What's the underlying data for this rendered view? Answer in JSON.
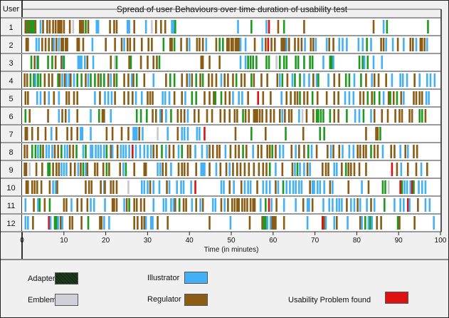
{
  "chart_data": {
    "type": "timeline",
    "title": "Spread of user Behaviours over time duration of usability test",
    "xlabel": "Time (in minutes)",
    "ylabel": "User",
    "xlim": [
      0,
      100
    ],
    "xticks": [
      0,
      10,
      20,
      30,
      40,
      50,
      60,
      70,
      80,
      90,
      100
    ],
    "users": [
      "1",
      "2",
      "3",
      "4",
      "5",
      "6",
      "7",
      "8",
      "9",
      "10",
      "11",
      "12"
    ],
    "categories": {
      "A": {
        "name": "Adapter",
        "color": "#1e9a1e"
      },
      "E": {
        "name": "Emblem",
        "color": "#c8c8d0"
      },
      "I": {
        "name": "Illustrator",
        "color": "#44b0f5"
      },
      "R": {
        "name": "Regulator",
        "color": "#8a5c14"
      },
      "U": {
        "name": "Usability Problem found",
        "color": "#dd1111"
      }
    },
    "events": [
      "R0.8A1.2R1.6A2A2.4A2.8R3.2I4.4R5R6R6.6R7.4R8R8.6R9R9.4R10R11.4E12.2R13.8R14.2R14.6A15.2R15.8I17.8I18.2R21R22R22.6I25.2I25.6R26.8I29.6E31R32R33.2R34.2I35.8I36.2A36.6I51.6A54.8I58.4U59R61.2A62.6R67.4R84I86.4A87.2A97",
      "R1R1.4I3.4I4R4.8R5.6R6.4R7.2I7.6R8.2I8.8R9.4R9.8R10.4R10.8R13.2R13.6R14.6I16.8R20R22.2R23.8I24.4R25.2R25.8R26.8R28.6R30.2R31A33.8R35.4R35.8A36.4R38R39.4I40R41.8R42.4R43.2I44R46.4A47.2A48R49R49.4R50R50.4R51R51.4R51.8I52.2I53.4R55.6I57.4R58.2U58.8R59.6R60.4R62R62.4R62.8I63.2R63.8R65.2R66R66.8I67.6R69R69.6I70.2I72.8R73.4R74.4I75.8I76.6I77.6I80.4I81.4A82.4I83.4R85.8R86.4I87I88.6R89.8I91.2R92.8R93.4I94.2R95.2R95.6R96.2I96.8",
      "A2.2R3I3.6A3.8A6.2A7.2R8R9.4I9.8A10I13.4I13.8I14.2I15R15.6I17R21.2E22.2A22.6R25.6A26R28.4R30R31.4R32.2A32.8R42.8R43.2R44.8R47.2I52.2I53.4A54A54.6A55.2A56A58.4A59E60.8A61.6A62.6A63.2A65.4A66A67.4A68.8A69.4I72A73.6A74I74.4A80.6A81.4I81.8A82.6I84I86",
      "R0.6R1.2A2A2.8I3.2A3.8A4.4R5.4R6.4R7.2A8.6R9I9.6R10.2I10.6I11.2R11.6I12.4A13.2A14.2R15.2I15.8A16.4A17.4R18.2A18.8A19.6R20.6I21.2R22A22.6R24.4R25.4I26.2R26.6A27.4R29.2I31.4R34.4A35.4A36.4R38.2R39.4I40R40.6A41.6R42.6A43.2R44.6R45.4R46.4I47.6R48.4R49.2R50.4A51.2R52.4R53.2A54.8R55.4R57.2R58.6R61I61.6A62.2R63.4I64.6A65.2A66.4I67.4I68.6R69.6I70.4A70.8I73.2R74.6R75.8A77.4A78.2I79.4A81R82.2I83.6R84.2R85.2R87I88.4I90.4I91I92R93.8I95I96.8I97.6I98.6",
      "R0.8R1.4I3.6I4.4R5.4I6.4R7.6I8.8R10.6R11.2R12.4R13.2I17.4R18.6I19.8I20.6I21.4R22.2R24.4R25.4R26.4I27.2I28.6R30R30.6R31.2I33.6I34.2I35.2R36.4R38.2I39A40.6A41.6R43.6R44.8R45.8A46.2A47.6R48.6R49.6I50.4I51.8I52.6R54U56.4R57.6R59.4I62R63.2R64.2R65.2R65.8A66.4R67.4R68.2A69.4R70.6R72.8R74.6R75.6I77.2I78.2I79.2R80.8R81.6A82.6R83.6A84.2A85.4I86.4R87.6A88R88.8A89.6R90.6I91.2R93.6R94.2R95R95.6I96.6I97.2",
      "A0.8R1.8R6.2I8.8R9.6R10.4I11.2R13.2I16.4A18.4R19.2R19.6I21.2A27.4A28.4A29.8R31.2R32I33R33.4I34.4A35.6R37.2R38R38.8I39.6R41.2R42.2R44.2R45.4R47.4R48.4R49.6R50.8R51.4A52.8R53.4R54.2R55.4R55.8R56.2R56.8R57.4R58.4R59.4R60.2R61.6I62.2R62.8R63.8R64.4I66.2E67R68R69.6A70.4A70.8A71.4A72A73.6R74.6R75.6A77.6I79.6I80.6A81.6I83.4R84.2R86R87.4R89.2R90.2R90.8R92.6R93.2A95A95.6R96.4",
      "R0.8R1.2R2.4R3.8R5.6I7R8.2R10.8R11.8R13.2I14I14.4I16.4R20.2R21.6R23.8R25.4I26.6I27I27.4R28I28.8E32.4I34.8R37.2I38.2I38.8I39.6I41.8I42.4U43.6R51A54.8R58.2A63R67.2A71.2A72.2R82.2R84.6R85A85.6",
      "R0.6R1.2A2.4A3.2I3.8A4.4R5I5.8I6.4I7.2R7.8R8.6A9.4I10.2I10.8R11.4R12.2A13I14.6A15.2I16.4I16.8I17.6I18.2I18.8I19.6A20.2R21.2I21.6R22.8I23.6I24.2I24.8I25.6U26.4I27.2I28.2I29.2I30I30.8R31.4R32.2A33.4I34.4R35.2R36.2I37.4A38.2R39.6R40.2I41.4I43I44.2R44.8R45.6R46.6R47.2I48.6R49.8R51R51.8A52.8R53.6I55.2R56.4R57.2R58.6R59.2A59.8R60.6I61.6I62.4R64.4I65.4R66.2R67.4A68.4I69.2R70.4R73I73.8R74.4R75.8I76.6I78.2I79.2R80.2R80.8R81.6R82.2A83.4R84.2R85I86.2R88.2R89I90.4R91.6I92.2R93.6R94.4",
      "R0.6R1E1.8R3.4R4.8A6.2A6.6R7.4R8.2R8.8I9.4I10I10.6R11.6R12.6I13.4R14A14.6I15.2R15.6R17.4R18R19.4A20.2R20.8R23.4I24.2A24.8R26.8R29.2R29.6I32.4I33R33.6R34.4I35.6R37.4R38.2R38.8R39.6R41.6I42.8I43.2I43.6R44.8I46.4R47.4R48.8I49.6R50.4R51.4R52.2R53.2R54.2R55.4R56.6R57.6R58.4A59.2I60.6R62.2R64.6I65.2A65.8I66.4I67.4R68.2I68.8R71.8R72.6R73.2I74.6I75.2R76.4A77.4R78R78.6R79.4R80.6R82.2U88.4R89.6I90.6R92.2R94.2I95.4R96.8",
      "R1R1.4R2.4R3R3.6R4.6R6.6I7.4I8R8.4R15.2R16R16.6R18.8I19.6R19.8R21.2R21.8R22.6E25.4I28.6I29.2I30R30.6I31.4I32.8R34.6I35.2I37I38I38.6I40.4U41.4I47.6I48.2R49.6I50.6R52.4I53.2I54I54.6R56.2I57.6I58.4I59.2R60.6I61.2A62.4I63.2I64I64.8I65.4I66.2I66.8R68.8I69.4I69.8I70.6I71.2I72.2R73.6I74.2R78I81.2R82.8A86.2A86.8E87.6U90.4A90.8I91.4I92I92.8U93.2A93.6I94.8I95.6I96.4",
      "I0.8R2.8I3.8A4.2R5.4A6.6R10R10.6I11.8R13.2R14.2R15.6I16.4I17.2I19.8R21.6R22R22.6I24.4R25A25.6R26.8R27.4R28.4R29.2I31.4I33.8I34.4I35.6I36.2R36.6A37.6R38.6R39.2I40.6R41.6I42.6R43.2I45.6I46.2R47.6I48.4R49.2R50.2R50.8R51.4R51.8R52.6R53.2R53.8R54.6R55.2R55.6I57A58.2U59I59.6R60.8I62.6I65.4R67.2I68.2I68.6R69.4I72I73.4I74.2I75.2I75.8I76.4R77.6I78.6I79.4R80.2I80.8I82.4R83.4I84.2A86.6I89I90.4I91.2U92.2I92.6R94.6I96.4I97.4",
      "I0.8I1.4R2.6U6.4I6.8A7.8A8.2I8.6R9.2I9.6R11.4R12R14.2A15.8R18.6R19I19.6I20.8R26.8R27.6R28.6R29.2I29.6I30.8I31.2R32.4R34.8R44.8I49.8R54.4R57.4A57.8A58.2I58.6I59.4R59.8R60.2R60.6R62.6I68.2U71.8R72.2I72.6I74.6R75.2I77.8R80.8I81.2A82I82.8A83.2I83.6R84.8R85.8A89.8R90.2R93.8I98.4"
    ]
  },
  "legend": {
    "items": [
      {
        "label": "Adapter",
        "color": "#1d3a1d"
      },
      {
        "label": "Emblem",
        "color": "#d0d0d8"
      },
      {
        "label": "Illustrator",
        "color": "#44b0f5"
      },
      {
        "label": "Regulator",
        "color": "#8a5c14"
      },
      {
        "label": "Usability Problem found",
        "color": "#dd1111"
      }
    ]
  }
}
